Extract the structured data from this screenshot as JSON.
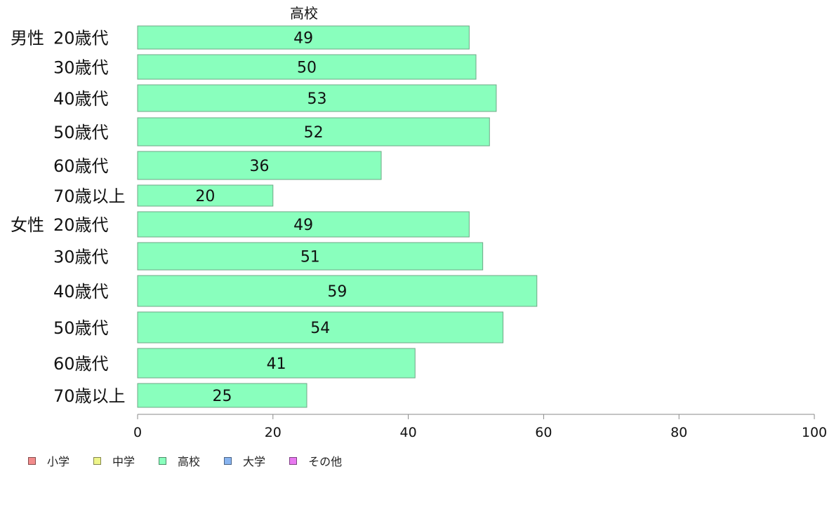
{
  "chart_data": {
    "type": "bar",
    "orientation": "horizontal",
    "title": "高校",
    "groups": [
      {
        "name": "男性",
        "categories": [
          "20歳代",
          "30歳代",
          "40歳代",
          "50歳代",
          "60歳代",
          "70歳以上"
        ],
        "values": [
          49,
          50,
          53,
          52,
          36,
          20
        ]
      },
      {
        "name": "女性",
        "categories": [
          "20歳代",
          "30歳代",
          "40歳代",
          "50歳代",
          "60歳代",
          "70歳以上"
        ],
        "values": [
          49,
          51,
          59,
          54,
          41,
          25
        ]
      }
    ],
    "xlim": [
      0,
      100
    ],
    "xticks": [
      "0",
      "20",
      "40",
      "60",
      "80",
      "100"
    ],
    "grid": false,
    "legend_position": "bottom-left",
    "legend": [
      {
        "label": "小学",
        "color": "#f28b8b"
      },
      {
        "label": "中学",
        "color": "#eef58a"
      },
      {
        "label": "高校",
        "color": "#89ffbd"
      },
      {
        "label": "大学",
        "color": "#88b4f0"
      },
      {
        "label": "その他",
        "color": "#e879f0"
      }
    ],
    "bar_color": "#89ffbd"
  }
}
